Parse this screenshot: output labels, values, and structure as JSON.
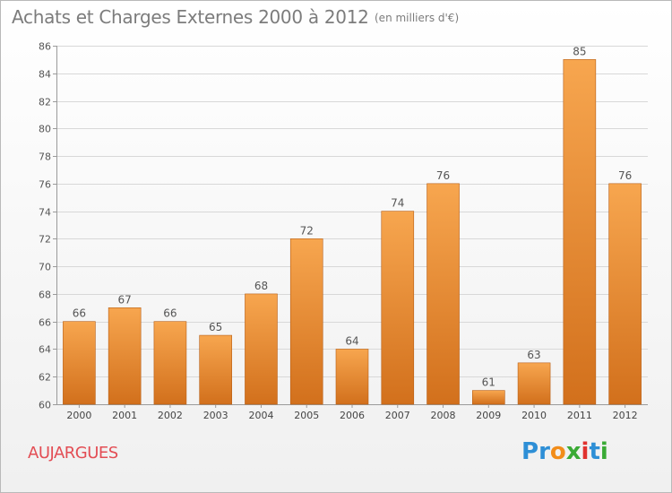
{
  "header": {
    "title": "Achats et Charges Externes 2000 à 2012",
    "subtitle": "(en milliers d'€)"
  },
  "footer": {
    "location": "AUJARGUES",
    "brand": "Proxiti",
    "brand_letter_colors": [
      "#2e8fd6",
      "#2e8fd6",
      "#f28d1a",
      "#3aaa35",
      "#e0322e",
      "#2e8fd6",
      "#3aaa35"
    ]
  },
  "colors": {
    "bar_top": "#f7a64f",
    "bar_bottom": "#d2701c",
    "bar_edge": "#b85f16",
    "text": "#7c7c7c",
    "grid": "#d8d8d8",
    "location": "#e34d54"
  },
  "chart_data": {
    "type": "bar",
    "title": "Achats et Charges Externes 2000 à 2012",
    "subtitle": "(en milliers d'€)",
    "xlabel": "",
    "ylabel": "",
    "categories": [
      "2000",
      "2001",
      "2002",
      "2003",
      "2004",
      "2005",
      "2006",
      "2007",
      "2008",
      "2009",
      "2010",
      "2011",
      "2012"
    ],
    "values": [
      66,
      67,
      66,
      65,
      68,
      72,
      64,
      74,
      76,
      61,
      63,
      85,
      76
    ],
    "ylim": [
      60,
      86
    ],
    "yticks": [
      60,
      62,
      64,
      66,
      68,
      70,
      72,
      74,
      76,
      78,
      80,
      82,
      84,
      86
    ],
    "grid": true,
    "data_labels": true
  }
}
